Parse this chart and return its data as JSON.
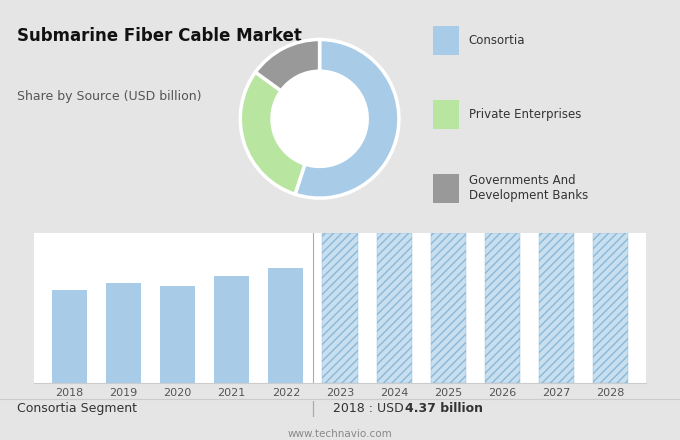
{
  "title": "Submarine Fiber Cable Market",
  "subtitle": "Share by Source (USD billion)",
  "bg_color_top": "#e5e5e5",
  "bg_color_bottom": "#ffffff",
  "donut_slices": [
    0.55,
    0.3,
    0.15
  ],
  "donut_colors": [
    "#a8cce8",
    "#b8e6a0",
    "#999999"
  ],
  "bar_years_solid": [
    2018,
    2019,
    2020,
    2021,
    2022
  ],
  "bar_values_solid": [
    4.37,
    4.7,
    4.55,
    5.0,
    5.4
  ],
  "bar_years_hatched": [
    2023,
    2024,
    2025,
    2026,
    2027,
    2028
  ],
  "bar_color_solid": "#a8cce8",
  "bar_color_hatched": "#c8dff0",
  "hatch_pattern": "////",
  "footer_left": "Consortia Segment",
  "footer_sep": "|",
  "footer_right_plain": "2018 : USD ",
  "footer_right_bold": "4.37 billion",
  "footer_url": "www.technavio.com",
  "legend_colors": [
    "#a8cce8",
    "#b8e6a0",
    "#999999"
  ],
  "legend_labels": [
    "Consortia",
    "Private Enterprises",
    "Governments And\nDevelopment Banks"
  ]
}
